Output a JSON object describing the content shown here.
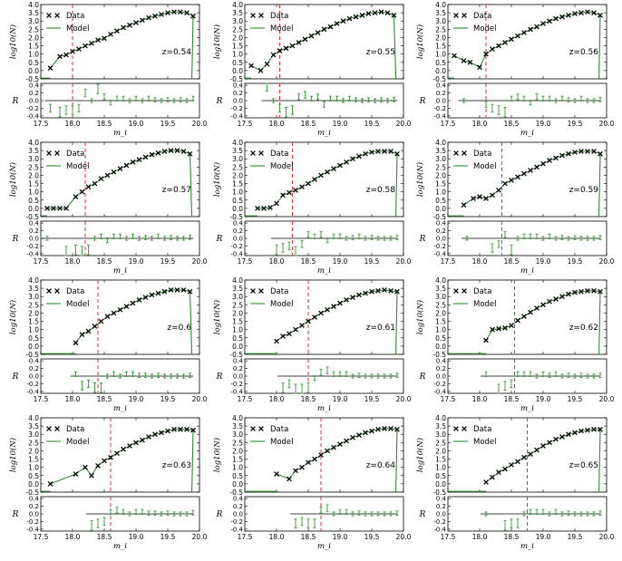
{
  "figure": {
    "xlabel": "m_i",
    "ylabel_top": "log10(N)",
    "ylabel_bottom": "R",
    "legend": {
      "data": "Data",
      "model": "Model",
      "placement": "top-left"
    },
    "x_ticks": [
      "17.5",
      "18.0",
      "18.5",
      "19.0",
      "19.5",
      "20.0"
    ],
    "y_ticks_top": [
      "-0.5",
      "0.0",
      "0.5",
      "1.0",
      "1.5",
      "2.0",
      "2.5",
      "3.0",
      "3.5",
      "4.0"
    ],
    "y_ticks_bottom": [
      "-0.4",
      "-0.2",
      "0.0",
      "0.2",
      "0.4"
    ],
    "colors": {
      "data": "#000000",
      "model": "#2e8b2e",
      "residual": "#3fa63f",
      "cut": "#e03030"
    }
  },
  "chart_data": [
    {
      "type": "scatter",
      "redshift_label": "z=0.54",
      "cut": 18.0,
      "xlim": [
        17.5,
        20.0
      ],
      "ylim": [
        -0.5,
        4.0
      ],
      "resid_ylim": [
        -0.45,
        0.45
      ],
      "data_x": [
        17.65,
        17.8,
        17.9,
        18.0,
        18.1,
        18.2,
        18.3,
        18.4,
        18.5,
        18.6,
        18.7,
        18.8,
        18.9,
        19.0,
        19.1,
        19.2,
        19.3,
        19.4,
        19.5,
        19.6,
        19.7,
        19.8,
        19.9
      ],
      "data_y": [
        0.15,
        0.85,
        0.95,
        1.15,
        1.3,
        1.5,
        1.65,
        1.85,
        1.95,
        2.2,
        2.4,
        2.6,
        2.75,
        2.9,
        3.05,
        3.2,
        3.3,
        3.4,
        3.5,
        3.55,
        3.55,
        3.5,
        3.3
      ],
      "resid_x": [
        17.65,
        17.8,
        17.9,
        18.0,
        18.1,
        18.2,
        18.3,
        18.4,
        18.5,
        18.6,
        18.7,
        18.8,
        18.9,
        19.0,
        19.1,
        19.2,
        19.3,
        19.4,
        19.5,
        19.6,
        19.7,
        19.8,
        19.9
      ],
      "resid_y": [
        -0.2,
        -0.3,
        -0.25,
        -0.25,
        -0.2,
        0.2,
        0.0,
        0.3,
        0.1,
        -0.05,
        0.05,
        0.05,
        0.0,
        0.05,
        0.0,
        0.05,
        0.02,
        0.0,
        0.02,
        0.0,
        0.02,
        0.0,
        0.05
      ]
    },
    {
      "type": "scatter",
      "redshift_label": "z=0.55",
      "cut": 18.05,
      "xlim": [
        17.5,
        20.0
      ],
      "ylim": [
        -0.5,
        4.0
      ],
      "resid_ylim": [
        -0.45,
        0.45
      ],
      "data_x": [
        17.6,
        17.75,
        17.85,
        17.95,
        18.05,
        18.15,
        18.25,
        18.35,
        18.45,
        18.55,
        18.65,
        18.75,
        18.85,
        18.95,
        19.05,
        19.15,
        19.25,
        19.35,
        19.45,
        19.55,
        19.65,
        19.75,
        19.85
      ],
      "data_y": [
        0.3,
        0.0,
        0.4,
        0.95,
        1.2,
        1.35,
        1.5,
        1.7,
        1.9,
        2.1,
        2.3,
        2.5,
        2.65,
        2.85,
        3.0,
        3.15,
        3.25,
        3.35,
        3.45,
        3.5,
        3.55,
        3.5,
        3.35
      ],
      "resid_x": [
        17.85,
        17.95,
        18.05,
        18.15,
        18.25,
        18.35,
        18.45,
        18.55,
        18.65,
        18.75,
        18.85,
        18.95,
        19.05,
        19.15,
        19.25,
        19.35,
        19.45,
        19.55,
        19.65,
        19.75,
        19.85
      ],
      "resid_y": [
        0.4,
        0.0,
        -0.2,
        -0.3,
        -0.25,
        0.1,
        0.15,
        0.05,
        0.1,
        -0.1,
        0.05,
        0.05,
        0.0,
        0.05,
        0.02,
        0.0,
        0.02,
        0.0,
        0.02,
        0.0,
        0.03
      ]
    },
    {
      "type": "scatter",
      "redshift_label": "z=0.56",
      "cut": 18.1,
      "xlim": [
        17.5,
        20.0
      ],
      "ylim": [
        -0.5,
        4.0
      ],
      "resid_ylim": [
        -0.45,
        0.45
      ],
      "data_x": [
        17.6,
        17.75,
        17.85,
        18.0,
        18.1,
        18.2,
        18.3,
        18.4,
        18.5,
        18.6,
        18.7,
        18.8,
        18.9,
        19.0,
        19.1,
        19.2,
        19.3,
        19.4,
        19.5,
        19.6,
        19.7,
        19.8,
        19.9
      ],
      "data_y": [
        0.9,
        0.6,
        0.5,
        0.2,
        1.0,
        1.3,
        1.5,
        1.7,
        1.9,
        2.1,
        2.3,
        2.5,
        2.65,
        2.85,
        3.0,
        3.15,
        3.25,
        3.35,
        3.45,
        3.5,
        3.55,
        3.5,
        3.35
      ],
      "resid_x": [
        17.75,
        18.1,
        18.2,
        18.3,
        18.4,
        18.5,
        18.6,
        18.7,
        18.8,
        18.9,
        19.0,
        19.1,
        19.2,
        19.3,
        19.4,
        19.5,
        19.6,
        19.7,
        19.8,
        19.9
      ],
      "resid_y": [
        0.0,
        -0.1,
        -0.2,
        -0.25,
        -0.3,
        0.05,
        0.1,
        0.05,
        -0.05,
        0.1,
        0.05,
        0.05,
        0.0,
        0.05,
        0.02,
        0.0,
        0.05,
        0.0,
        0.0,
        0.03
      ]
    },
    {
      "type": "scatter",
      "redshift_label": "z=0.57",
      "cut": 18.2,
      "xlim": [
        17.5,
        20.0
      ],
      "ylim": [
        -0.5,
        4.0
      ],
      "resid_ylim": [
        -0.45,
        0.45
      ],
      "data_x": [
        17.6,
        17.7,
        17.8,
        17.9,
        18.05,
        18.15,
        18.25,
        18.35,
        18.45,
        18.55,
        18.65,
        18.75,
        18.85,
        18.95,
        19.05,
        19.15,
        19.25,
        19.35,
        19.45,
        19.55,
        19.65,
        19.75,
        19.85
      ],
      "data_y": [
        0.0,
        0.0,
        0.0,
        0.0,
        0.7,
        1.0,
        1.3,
        1.5,
        1.8,
        2.0,
        2.2,
        2.4,
        2.6,
        2.8,
        2.95,
        3.1,
        3.25,
        3.35,
        3.45,
        3.5,
        3.5,
        3.45,
        3.3
      ],
      "resid_x": [
        17.6,
        17.9,
        18.05,
        18.15,
        18.25,
        18.35,
        18.45,
        18.55,
        18.65,
        18.75,
        18.85,
        18.95,
        19.05,
        19.15,
        19.25,
        19.35,
        19.45,
        19.55,
        19.65,
        19.75,
        19.85
      ],
      "resid_y": [
        0.0,
        -0.35,
        -0.3,
        -0.35,
        -0.3,
        0.0,
        0.05,
        -0.05,
        0.05,
        0.05,
        0.0,
        0.05,
        0.0,
        0.02,
        0.0,
        0.05,
        0.0,
        0.02,
        0.0,
        0.0,
        0.03
      ]
    },
    {
      "type": "scatter",
      "redshift_label": "z=0.58",
      "cut": 18.25,
      "xlim": [
        17.5,
        20.0
      ],
      "ylim": [
        -0.5,
        4.0
      ],
      "resid_ylim": [
        -0.45,
        0.45
      ],
      "data_x": [
        17.7,
        17.8,
        17.9,
        18.0,
        18.1,
        18.2,
        18.3,
        18.4,
        18.5,
        18.6,
        18.7,
        18.8,
        18.9,
        19.0,
        19.1,
        19.2,
        19.3,
        19.4,
        19.5,
        19.6,
        19.7,
        19.8,
        19.9
      ],
      "data_y": [
        0.0,
        0.0,
        0.05,
        0.3,
        0.8,
        0.95,
        1.1,
        1.3,
        1.5,
        1.75,
        2.0,
        2.2,
        2.4,
        2.6,
        2.8,
        3.0,
        3.15,
        3.3,
        3.4,
        3.45,
        3.45,
        3.45,
        3.3
      ],
      "resid_x": [
        18.0,
        18.1,
        18.2,
        18.3,
        18.4,
        18.5,
        18.6,
        18.7,
        18.8,
        18.9,
        19.0,
        19.1,
        19.2,
        19.3,
        19.4,
        19.5,
        19.6,
        19.7,
        19.8,
        19.9
      ],
      "resid_y": [
        -0.3,
        -0.25,
        -0.2,
        -0.35,
        -0.15,
        0.1,
        0.05,
        0.1,
        -0.05,
        0.05,
        0.05,
        0.0,
        0.02,
        0.05,
        0.0,
        0.02,
        0.0,
        0.0,
        0.0,
        0.02
      ]
    },
    {
      "type": "scatter",
      "redshift_label": "z=0.59",
      "cut": 18.35,
      "xlim": [
        17.5,
        20.0
      ],
      "ylim": [
        -0.5,
        4.0
      ],
      "resid_ylim": [
        -0.45,
        0.45
      ],
      "data_x": [
        17.75,
        17.9,
        18.0,
        18.1,
        18.2,
        18.3,
        18.4,
        18.5,
        18.6,
        18.7,
        18.8,
        18.9,
        19.0,
        19.1,
        19.2,
        19.3,
        19.4,
        19.5,
        19.6,
        19.7,
        19.8,
        19.9
      ],
      "data_y": [
        0.2,
        0.6,
        0.7,
        0.6,
        0.8,
        1.1,
        1.5,
        1.7,
        1.9,
        2.1,
        2.3,
        2.5,
        2.7,
        2.9,
        3.05,
        3.2,
        3.3,
        3.4,
        3.45,
        3.45,
        3.45,
        3.3
      ],
      "resid_x": [
        17.8,
        18.2,
        18.3,
        18.4,
        18.5,
        18.6,
        18.7,
        18.8,
        18.9,
        19.0,
        19.1,
        19.2,
        19.3,
        19.4,
        19.5,
        19.6,
        19.7,
        19.8,
        19.9
      ],
      "resid_y": [
        0.0,
        -0.25,
        -0.15,
        0.1,
        -0.3,
        0.0,
        0.05,
        0.05,
        0.05,
        0.0,
        0.05,
        0.0,
        0.02,
        0.0,
        0.02,
        0.0,
        0.0,
        0.0,
        0.02
      ]
    },
    {
      "type": "scatter",
      "redshift_label": "z=0.6",
      "cut": 18.4,
      "xlim": [
        17.5,
        20.0
      ],
      "ylim": [
        -0.5,
        4.0
      ],
      "resid_ylim": [
        -0.45,
        0.45
      ],
      "data_x": [
        18.05,
        18.15,
        18.25,
        18.35,
        18.45,
        18.55,
        18.65,
        18.75,
        18.85,
        18.95,
        19.05,
        19.15,
        19.25,
        19.35,
        19.45,
        19.55,
        19.65,
        19.75,
        19.85
      ],
      "data_y": [
        0.2,
        0.7,
        0.9,
        1.2,
        1.5,
        1.8,
        2.0,
        2.2,
        2.4,
        2.6,
        2.8,
        2.95,
        3.1,
        3.2,
        3.3,
        3.4,
        3.4,
        3.4,
        3.3
      ],
      "resid_x": [
        18.05,
        18.15,
        18.25,
        18.35,
        18.45,
        18.55,
        18.65,
        18.75,
        18.85,
        18.95,
        19.05,
        19.15,
        19.25,
        19.35,
        19.45,
        19.55,
        19.65,
        19.75,
        19.85
      ],
      "resid_y": [
        0.05,
        -0.25,
        -0.2,
        -0.3,
        -0.3,
        0.0,
        0.05,
        0.0,
        0.05,
        0.05,
        0.02,
        0.02,
        0.0,
        0.02,
        0.0,
        0.0,
        0.0,
        0.0,
        0.02
      ]
    },
    {
      "type": "scatter",
      "redshift_label": "z=0.61",
      "cut": 18.5,
      "xlim": [
        17.5,
        20.0
      ],
      "ylim": [
        -0.5,
        4.0
      ],
      "resid_ylim": [
        -0.45,
        0.45
      ],
      "data_x": [
        18.0,
        18.1,
        18.2,
        18.3,
        18.4,
        18.5,
        18.6,
        18.7,
        18.8,
        18.9,
        19.0,
        19.1,
        19.2,
        19.3,
        19.4,
        19.5,
        19.6,
        19.7,
        19.8,
        19.9
      ],
      "data_y": [
        0.3,
        0.6,
        0.75,
        1.0,
        1.25,
        1.5,
        1.75,
        2.0,
        2.2,
        2.4,
        2.6,
        2.8,
        2.95,
        3.1,
        3.2,
        3.3,
        3.35,
        3.4,
        3.35,
        3.3
      ],
      "resid_x": [
        18.1,
        18.2,
        18.3,
        18.4,
        18.5,
        18.6,
        18.7,
        18.8,
        18.9,
        19.0,
        19.1,
        19.2,
        19.3,
        19.4,
        19.5,
        19.6,
        19.7,
        19.8,
        19.9
      ],
      "resid_y": [
        -0.3,
        -0.2,
        -0.35,
        -0.35,
        -0.3,
        -0.05,
        0.1,
        0.15,
        0.05,
        0.05,
        0.05,
        0.0,
        0.02,
        0.0,
        0.0,
        0.0,
        0.0,
        0.0,
        0.02
      ]
    },
    {
      "type": "scatter",
      "redshift_label": "z=0.62",
      "cut": 18.55,
      "xlim": [
        17.5,
        20.0
      ],
      "ylim": [
        -0.5,
        4.0
      ],
      "resid_ylim": [
        -0.45,
        0.45
      ],
      "data_x": [
        18.1,
        18.2,
        18.3,
        18.4,
        18.5,
        18.6,
        18.7,
        18.8,
        18.9,
        19.0,
        19.1,
        19.2,
        19.3,
        19.4,
        19.5,
        19.6,
        19.7,
        19.8,
        19.9
      ],
      "data_y": [
        0.35,
        1.0,
        1.05,
        1.1,
        1.25,
        1.55,
        1.8,
        2.05,
        2.3,
        2.5,
        2.7,
        2.85,
        3.0,
        3.15,
        3.25,
        3.3,
        3.35,
        3.35,
        3.3
      ],
      "resid_x": [
        18.1,
        18.3,
        18.4,
        18.5,
        18.6,
        18.7,
        18.8,
        18.9,
        19.0,
        19.1,
        19.2,
        19.3,
        19.4,
        19.5,
        19.6,
        19.7,
        19.8,
        19.9
      ],
      "resid_y": [
        0.05,
        -0.35,
        -0.25,
        -0.2,
        0.05,
        0.05,
        0.05,
        0.0,
        0.05,
        0.02,
        0.05,
        0.0,
        0.02,
        0.0,
        0.02,
        0.0,
        0.0,
        0.02
      ]
    },
    {
      "type": "scatter",
      "redshift_label": "z=0.63",
      "cut": 18.6,
      "xlim": [
        17.5,
        20.0
      ],
      "ylim": [
        -0.5,
        4.0
      ],
      "resid_ylim": [
        -0.45,
        0.45
      ],
      "data_x": [
        17.65,
        18.05,
        18.2,
        18.3,
        18.4,
        18.5,
        18.6,
        18.7,
        18.8,
        18.9,
        19.0,
        19.1,
        19.2,
        19.3,
        19.4,
        19.5,
        19.6,
        19.7,
        19.8,
        19.9
      ],
      "data_y": [
        0.0,
        0.6,
        1.0,
        0.5,
        1.1,
        1.4,
        1.6,
        1.85,
        2.1,
        2.3,
        2.5,
        2.65,
        2.85,
        3.0,
        3.1,
        3.2,
        3.3,
        3.3,
        3.3,
        3.25
      ],
      "resid_x": [
        18.3,
        18.4,
        18.5,
        18.6,
        18.7,
        18.8,
        18.9,
        19.0,
        19.1,
        19.2,
        19.3,
        19.4,
        19.5,
        19.6,
        19.7,
        19.8,
        19.9
      ],
      "resid_y": [
        -0.3,
        -0.25,
        -0.2,
        0.05,
        0.1,
        0.05,
        0.0,
        0.05,
        0.05,
        0.02,
        0.02,
        0.0,
        0.02,
        0.0,
        0.0,
        0.0,
        0.03
      ]
    },
    {
      "type": "scatter",
      "redshift_label": "z=0.64",
      "cut": 18.7,
      "xlim": [
        17.5,
        20.0
      ],
      "ylim": [
        -0.5,
        4.0
      ],
      "resid_ylim": [
        -0.45,
        0.45
      ],
      "data_x": [
        18.0,
        18.2,
        18.3,
        18.4,
        18.5,
        18.6,
        18.7,
        18.8,
        18.9,
        19.0,
        19.1,
        19.2,
        19.3,
        19.4,
        19.5,
        19.6,
        19.7,
        19.8,
        19.9
      ],
      "data_y": [
        0.6,
        0.3,
        0.8,
        1.0,
        1.3,
        1.5,
        1.75,
        2.0,
        2.2,
        2.4,
        2.6,
        2.8,
        2.95,
        3.1,
        3.2,
        3.3,
        3.35,
        3.35,
        3.3
      ],
      "resid_x": [
        18.3,
        18.4,
        18.5,
        18.6,
        18.7,
        18.8,
        18.9,
        19.0,
        19.1,
        19.2,
        19.3,
        19.4,
        19.5,
        19.6,
        19.7,
        19.8,
        19.9
      ],
      "resid_y": [
        -0.25,
        -0.2,
        -0.25,
        -0.25,
        0.1,
        0.15,
        0.0,
        0.05,
        0.05,
        0.0,
        0.02,
        0.0,
        0.0,
        0.0,
        0.0,
        0.0,
        0.02
      ]
    },
    {
      "type": "scatter",
      "redshift_label": "z=0.65",
      "cut": 18.75,
      "xlim": [
        17.5,
        20.0
      ],
      "ylim": [
        -0.5,
        4.0
      ],
      "resid_ylim": [
        -0.45,
        0.45
      ],
      "data_x": [
        18.1,
        18.2,
        18.3,
        18.4,
        18.5,
        18.6,
        18.7,
        18.8,
        18.9,
        19.0,
        19.1,
        19.2,
        19.3,
        19.4,
        19.5,
        19.6,
        19.7,
        19.8,
        19.9
      ],
      "data_y": [
        0.1,
        0.4,
        0.7,
        0.9,
        1.15,
        1.35,
        1.6,
        1.8,
        2.05,
        2.3,
        2.5,
        2.7,
        2.85,
        3.0,
        3.1,
        3.2,
        3.25,
        3.3,
        3.3
      ],
      "resid_x": [
        18.1,
        18.4,
        18.5,
        18.6,
        18.7,
        18.8,
        18.9,
        19.0,
        19.1,
        19.2,
        19.3,
        19.4,
        19.5,
        19.6,
        19.7,
        19.8,
        19.9
      ],
      "resid_y": [
        0.0,
        -0.3,
        -0.25,
        -0.25,
        0.0,
        0.05,
        0.05,
        0.05,
        0.0,
        0.05,
        0.0,
        0.02,
        0.0,
        0.0,
        0.0,
        0.0,
        0.02
      ]
    }
  ]
}
